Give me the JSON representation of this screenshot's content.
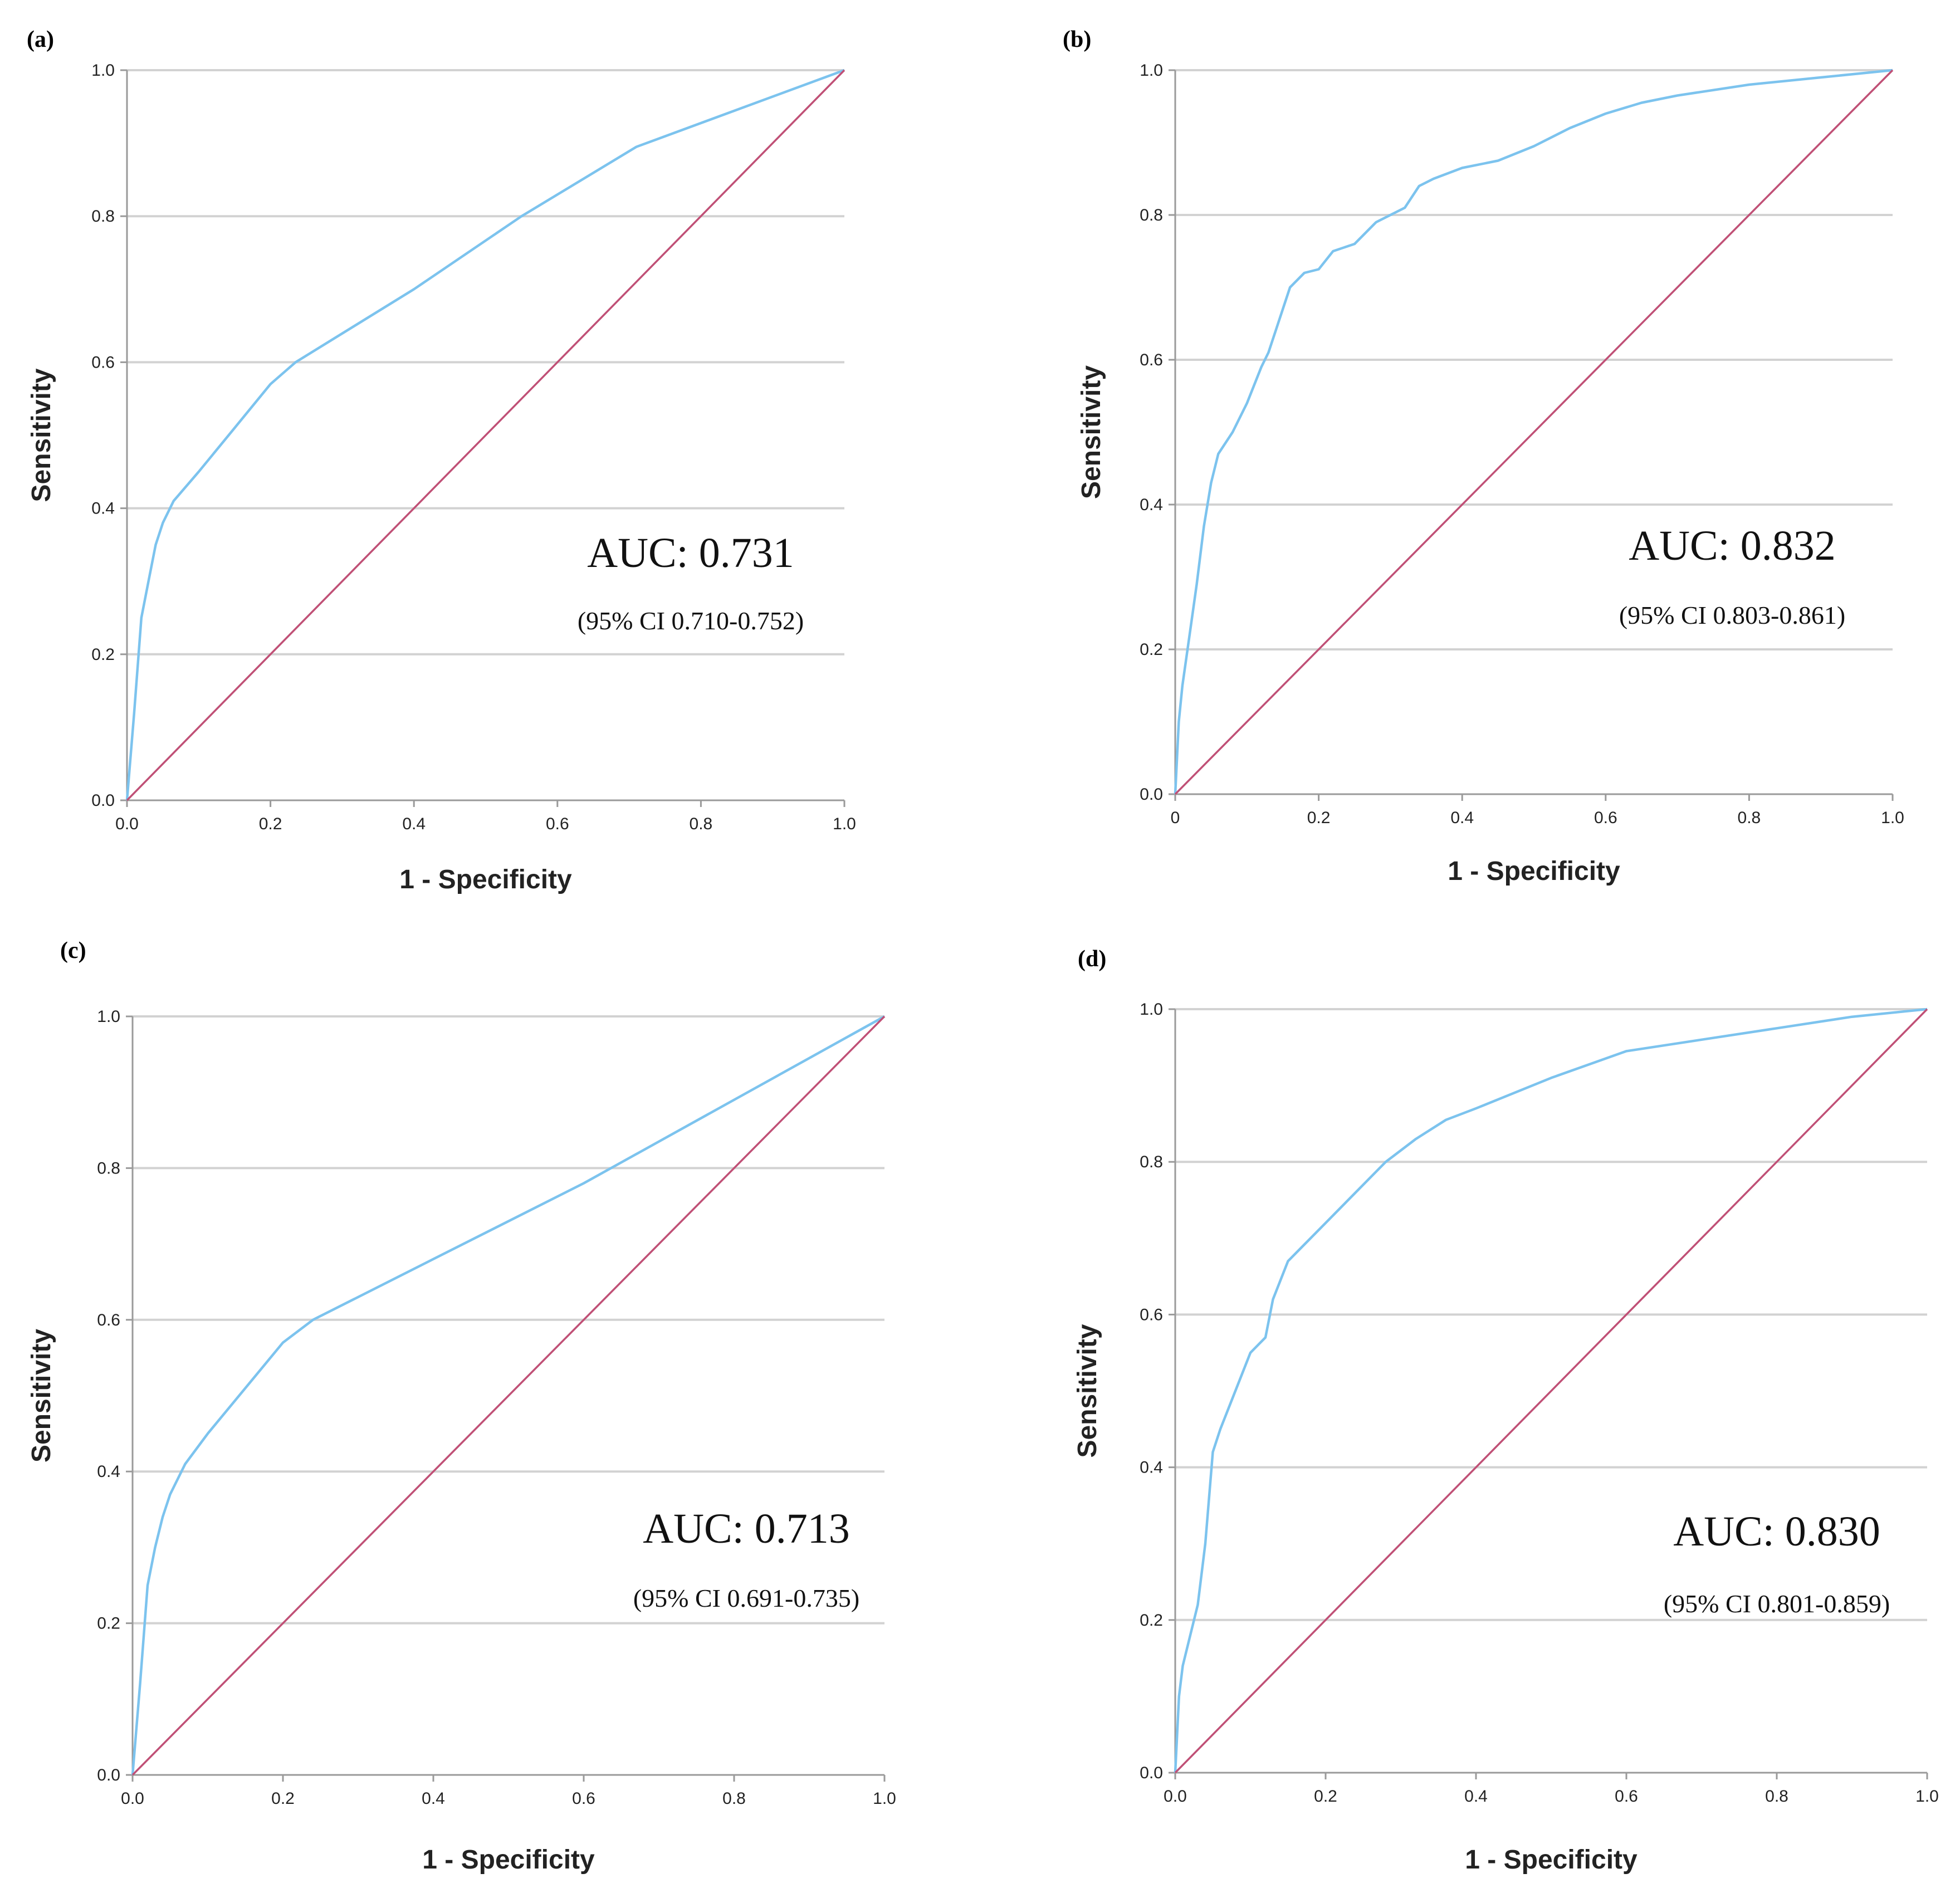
{
  "colors": {
    "roc": "#7cc3ee",
    "reference": "#c05076",
    "grid": "#d2d2d2",
    "axis": "#9a9a9a"
  },
  "chart_data": [
    {
      "panel_label": "(a)",
      "type": "line",
      "xlabel": "1 - Specificity",
      "ylabel": "Sensitivity",
      "xlim": [
        0,
        1
      ],
      "ylim": [
        0,
        1
      ],
      "xticks": [
        "0.0",
        "0.2",
        "0.4",
        "0.6",
        "0.8",
        "1.0"
      ],
      "yticks": [
        "0.0",
        "0.2",
        "0.4",
        "0.6",
        "0.8",
        "1.0"
      ],
      "grid": "horizontal",
      "auc_text": "AUC: 0.731",
      "ci_text": "(95% CI 0.710-0.752)",
      "series": [
        {
          "name": "ROC",
          "x": [
            0,
            0.01,
            0.02,
            0.03,
            0.04,
            0.05,
            0.065,
            0.1,
            0.15,
            0.2,
            0.235,
            0.4,
            0.55,
            0.71,
            1.0
          ],
          "y": [
            0,
            0.12,
            0.25,
            0.3,
            0.35,
            0.38,
            0.41,
            0.45,
            0.51,
            0.57,
            0.6,
            0.7,
            0.8,
            0.895,
            1.0
          ]
        },
        {
          "name": "Reference",
          "x": [
            0,
            1
          ],
          "y": [
            0,
            1
          ]
        }
      ]
    },
    {
      "panel_label": "(b)",
      "type": "line",
      "xlabel": "1 - Specificity",
      "ylabel": "Sensitivity",
      "xlim": [
        0,
        1
      ],
      "ylim": [
        0,
        1
      ],
      "xticks": [
        "0",
        "0.2",
        "0.4",
        "0.6",
        "0.8",
        "1.0"
      ],
      "yticks": [
        "0.0",
        "0.2",
        "0.4",
        "0.6",
        "0.8",
        "1.0"
      ],
      "grid": "horizontal",
      "auc_text": "AUC: 0.832",
      "ci_text": "(95% CI 0.803-0.861)",
      "series": [
        {
          "name": "ROC",
          "x": [
            0,
            0.005,
            0.01,
            0.02,
            0.03,
            0.04,
            0.05,
            0.06,
            0.08,
            0.1,
            0.12,
            0.13,
            0.15,
            0.16,
            0.18,
            0.2,
            0.22,
            0.25,
            0.28,
            0.32,
            0.34,
            0.36,
            0.4,
            0.45,
            0.5,
            0.55,
            0.6,
            0.65,
            0.7,
            0.8,
            0.9,
            1.0
          ],
          "y": [
            0,
            0.1,
            0.15,
            0.22,
            0.29,
            0.37,
            0.43,
            0.47,
            0.5,
            0.54,
            0.59,
            0.61,
            0.67,
            0.7,
            0.72,
            0.725,
            0.75,
            0.76,
            0.79,
            0.81,
            0.84,
            0.85,
            0.865,
            0.875,
            0.895,
            0.92,
            0.94,
            0.955,
            0.965,
            0.98,
            0.99,
            1.0
          ]
        },
        {
          "name": "Reference",
          "x": [
            0,
            1
          ],
          "y": [
            0,
            1
          ]
        }
      ]
    },
    {
      "panel_label": "(c)",
      "type": "line",
      "xlabel": "1 - Specificity",
      "ylabel": "Sensitivity",
      "xlim": [
        0,
        1
      ],
      "ylim": [
        0,
        1
      ],
      "xticks": [
        "0.0",
        "0.2",
        "0.4",
        "0.6",
        "0.8",
        "1.0"
      ],
      "yticks": [
        "0.0",
        "0.2",
        "0.4",
        "0.6",
        "0.8",
        "1.0"
      ],
      "grid": "horizontal",
      "auc_text": "AUC: 0.713",
      "ci_text": "(95% CI 0.691-0.735)",
      "series": [
        {
          "name": "ROC",
          "x": [
            0,
            0.01,
            0.02,
            0.03,
            0.04,
            0.05,
            0.07,
            0.1,
            0.15,
            0.2,
            0.24,
            0.4,
            0.6,
            0.8,
            1.0
          ],
          "y": [
            0,
            0.12,
            0.25,
            0.3,
            0.34,
            0.37,
            0.41,
            0.45,
            0.51,
            0.57,
            0.6,
            0.68,
            0.78,
            0.89,
            1.0
          ]
        },
        {
          "name": "Reference",
          "x": [
            0,
            1
          ],
          "y": [
            0,
            1
          ]
        }
      ]
    },
    {
      "panel_label": "(d)",
      "type": "line",
      "xlabel": "1 - Specificity",
      "ylabel": "Sensitivity",
      "xlim": [
        0,
        1
      ],
      "ylim": [
        0,
        1
      ],
      "xticks": [
        "0.0",
        "0.2",
        "0.4",
        "0.6",
        "0.8",
        "1.0"
      ],
      "yticks": [
        "0.0",
        "0.2",
        "0.4",
        "0.6",
        "0.8",
        "1.0"
      ],
      "grid": "horizontal",
      "auc_text": "AUC: 0.830",
      "ci_text": "(95% CI 0.801-0.859)",
      "series": [
        {
          "name": "ROC",
          "x": [
            0,
            0.005,
            0.01,
            0.02,
            0.03,
            0.04,
            0.05,
            0.06,
            0.08,
            0.1,
            0.12,
            0.13,
            0.15,
            0.17,
            0.2,
            0.22,
            0.25,
            0.28,
            0.32,
            0.36,
            0.4,
            0.5,
            0.6,
            0.7,
            0.8,
            0.9,
            1.0
          ],
          "y": [
            0,
            0.1,
            0.14,
            0.18,
            0.22,
            0.3,
            0.42,
            0.45,
            0.5,
            0.55,
            0.57,
            0.62,
            0.67,
            0.69,
            0.72,
            0.74,
            0.77,
            0.8,
            0.83,
            0.855,
            0.87,
            0.91,
            0.945,
            0.96,
            0.975,
            0.99,
            1.0
          ]
        },
        {
          "name": "Reference",
          "x": [
            0,
            1
          ],
          "y": [
            0,
            1
          ]
        }
      ]
    }
  ]
}
